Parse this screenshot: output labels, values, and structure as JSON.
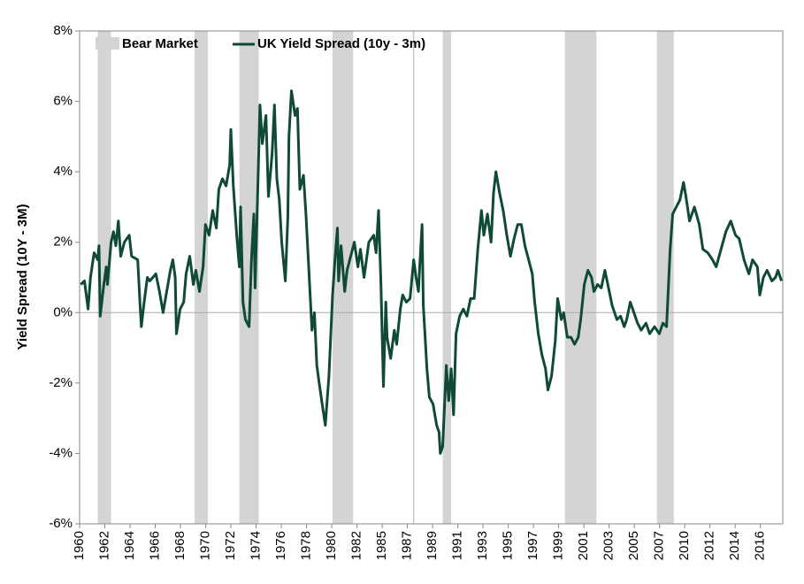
{
  "chart_data": {
    "type": "line",
    "ylabel": "Yield Spread (10Y - 3M)",
    "xlim": [
      1960,
      2018.1
    ],
    "ylim": [
      -6,
      8
    ],
    "yticks": [
      {
        "value": -6,
        "label": "-6%"
      },
      {
        "value": -4,
        "label": "-4%"
      },
      {
        "value": -2,
        "label": "-2%"
      },
      {
        "value": 0,
        "label": "0%"
      },
      {
        "value": 2,
        "label": "2%"
      },
      {
        "value": 4,
        "label": "4%"
      },
      {
        "value": 6,
        "label": "6%"
      },
      {
        "value": 8,
        "label": "8%"
      }
    ],
    "xticks": [
      1960,
      {
        "value": 1962.08,
        "label": "1962"
      },
      {
        "value": 1964.17,
        "label": "1964"
      },
      {
        "value": 1966.25,
        "label": "1966"
      },
      {
        "value": 1968.33,
        "label": "1968"
      },
      {
        "value": 1970.42,
        "label": "1970"
      },
      {
        "value": 1972.5,
        "label": "1972"
      },
      {
        "value": 1974.58,
        "label": "1974"
      },
      {
        "value": 1976.67,
        "label": "1976"
      },
      {
        "value": 1978.75,
        "label": "1978"
      },
      {
        "value": 1980.83,
        "label": "1980"
      },
      {
        "value": 1982.92,
        "label": "1982"
      },
      1985,
      {
        "value": 1987.08,
        "label": "1987"
      },
      {
        "value": 1989.17,
        "label": "1989"
      },
      {
        "value": 1991.25,
        "label": "1991"
      },
      {
        "value": 1993.33,
        "label": "1993"
      },
      {
        "value": 1995.42,
        "label": "1995"
      },
      {
        "value": 1997.5,
        "label": "1997"
      },
      {
        "value": 1999.58,
        "label": "1999"
      },
      {
        "value": 2001.67,
        "label": "2001"
      },
      {
        "value": 2003.75,
        "label": "2003"
      },
      {
        "value": 2005.83,
        "label": "2005"
      },
      {
        "value": 2007.92,
        "label": "2007"
      },
      2010,
      {
        "value": 2012.08,
        "label": "2012"
      },
      {
        "value": 2014.17,
        "label": "2014"
      },
      {
        "value": 2016.25,
        "label": "2016"
      }
    ],
    "bands": {
      "name": "Bear Market",
      "color": "#d4d4d4",
      "ranges": [
        [
          1961.5,
          1962.6
        ],
        [
          1969.5,
          1970.6
        ],
        [
          1973.2,
          1974.8
        ],
        [
          1980.9,
          1982.6
        ],
        [
          1990.0,
          1990.7
        ],
        [
          2000.1,
          2002.7
        ],
        [
          2007.7,
          2009.1
        ]
      ]
    },
    "reference_lines": [
      1987.6
    ],
    "x": [
      1960.1,
      1960.4,
      1960.7,
      1960.9,
      1961.2,
      1961.5,
      1961.6,
      1961.7,
      1962.0,
      1962.2,
      1962.3,
      1962.6,
      1962.8,
      1963.0,
      1963.2,
      1963.4,
      1963.7,
      1964.1,
      1964.3,
      1964.8,
      1965.0,
      1965.1,
      1965.3,
      1965.6,
      1965.8,
      1966.3,
      1966.6,
      1966.9,
      1967.2,
      1967.5,
      1967.7,
      1967.9,
      1968.0,
      1968.3,
      1968.6,
      1968.8,
      1969.1,
      1969.4,
      1969.6,
      1969.9,
      1970.2,
      1970.4,
      1970.7,
      1971.0,
      1971.3,
      1971.5,
      1971.8,
      1972.1,
      1972.4,
      1972.5,
      1972.7,
      1973.0,
      1973.2,
      1973.3,
      1973.5,
      1973.7,
      1974.0,
      1974.2,
      1974.4,
      1974.5,
      1974.8,
      1974.9,
      1975.1,
      1975.4,
      1975.6,
      1975.9,
      1976.1,
      1976.3,
      1976.5,
      1976.7,
      1977.0,
      1977.2,
      1977.3,
      1977.5,
      1977.8,
      1978.0,
      1978.2,
      1978.5,
      1978.7,
      1978.9,
      1979.2,
      1979.4,
      1979.6,
      1979.8,
      1980.0,
      1980.3,
      1980.6,
      1980.9,
      1981.1,
      1981.3,
      1981.4,
      1981.6,
      1981.9,
      1982.1,
      1982.4,
      1982.7,
      1983.0,
      1983.2,
      1983.5,
      1983.9,
      1984.3,
      1984.5,
      1984.7,
      1984.9,
      1985.1,
      1985.3,
      1985.4,
      1985.7,
      1986.0,
      1986.2,
      1986.5,
      1986.7,
      1987.0,
      1987.3,
      1987.6,
      1987.8,
      1988.0,
      1988.1,
      1988.3,
      1988.4,
      1988.7,
      1988.9,
      1989.2,
      1989.5,
      1989.7,
      1989.8,
      1990.0,
      1990.3,
      1990.5,
      1990.7,
      1990.9,
      1991.1,
      1991.4,
      1991.7,
      1992.0,
      1992.3,
      1992.6,
      1992.9,
      1993.2,
      1993.4,
      1993.7,
      1994.0,
      1994.2,
      1994.4,
      1994.7,
      1995.0,
      1995.3,
      1995.6,
      1995.9,
      1996.2,
      1996.5,
      1996.8,
      1997.1,
      1997.4,
      1997.6,
      1997.9,
      1998.2,
      1998.5,
      1998.7,
      1999.0,
      1999.3,
      1999.5,
      1999.8,
      2000.0,
      2000.3,
      2000.6,
      2000.9,
      2001.2,
      2001.4,
      2001.7,
      2002.0,
      2002.3,
      2002.5,
      2002.8,
      2003.1,
      2003.4,
      2003.7,
      2004.0,
      2004.4,
      2004.7,
      2005.0,
      2005.2,
      2005.5,
      2005.8,
      2006.1,
      2006.4,
      2006.8,
      2007.1,
      2007.5,
      2007.9,
      2008.2,
      2008.5,
      2008.8,
      2009.0,
      2009.3,
      2009.6,
      2009.9,
      2010.1,
      2010.4,
      2010.8,
      2011.2,
      2011.5,
      2011.9,
      2012.3,
      2012.6,
      2013.0,
      2013.4,
      2013.8,
      2014.2,
      2014.5,
      2014.9,
      2015.3,
      2015.6,
      2016.0,
      2016.2,
      2016.5,
      2016.8,
      2017.2,
      2017.5,
      2017.7,
      2018.0
    ],
    "series": [
      {
        "name": "UK Yield Spread (10y - 3m)",
        "color": "#0f4a36",
        "values": [
          0.8,
          0.9,
          0.1,
          1.0,
          1.7,
          1.5,
          1.9,
          -0.1,
          0.8,
          1.3,
          0.8,
          2.0,
          2.3,
          1.9,
          2.6,
          1.6,
          2.0,
          2.2,
          1.6,
          1.5,
          0.2,
          -0.4,
          0.2,
          1.0,
          0.9,
          1.1,
          0.6,
          0.0,
          0.6,
          1.2,
          1.5,
          1.0,
          -0.6,
          0.1,
          0.3,
          1.1,
          1.6,
          0.8,
          1.2,
          0.6,
          1.3,
          2.5,
          2.2,
          2.9,
          2.4,
          3.5,
          3.8,
          3.6,
          4.2,
          5.2,
          3.6,
          2.1,
          1.3,
          3.0,
          0.3,
          -0.2,
          -0.4,
          1.5,
          2.8,
          0.7,
          4.5,
          5.9,
          4.8,
          5.6,
          3.3,
          4.5,
          5.9,
          3.8,
          3.2,
          2.0,
          0.9,
          2.7,
          5.0,
          6.3,
          5.6,
          5.8,
          3.5,
          3.9,
          2.8,
          1.5,
          -0.5,
          0.0,
          -1.5,
          -2.0,
          -2.5,
          -3.2,
          -1.8,
          0.5,
          1.5,
          2.4,
          0.9,
          1.9,
          0.6,
          1.2,
          1.6,
          2.0,
          1.3,
          1.8,
          1.0,
          2.0,
          2.2,
          1.7,
          2.9,
          0.8,
          -2.1,
          0.3,
          -0.7,
          -1.3,
          -0.5,
          -0.9,
          0.1,
          0.5,
          0.3,
          0.4,
          1.5,
          1.0,
          0.6,
          1.3,
          2.5,
          0.2,
          -1.6,
          -2.4,
          -2.6,
          -3.2,
          -3.4,
          -4.0,
          -3.8,
          -1.5,
          -2.5,
          -1.6,
          -2.9,
          -0.6,
          -0.1,
          0.1,
          -0.1,
          0.4,
          0.4,
          1.8,
          2.9,
          2.2,
          2.8,
          2.0,
          3.4,
          4.0,
          3.4,
          2.9,
          2.2,
          1.6,
          2.1,
          2.5,
          2.5,
          1.9,
          1.5,
          1.1,
          0.3,
          -0.6,
          -1.2,
          -1.6,
          -2.2,
          -1.8,
          -0.8,
          0.4,
          -0.2,
          0.0,
          -0.7,
          -0.7,
          -0.9,
          -0.7,
          -0.2,
          0.8,
          1.2,
          1.0,
          0.6,
          0.8,
          0.7,
          1.2,
          0.7,
          0.2,
          -0.2,
          -0.1,
          -0.4,
          -0.2,
          0.3,
          0.0,
          -0.3,
          -0.5,
          -0.3,
          -0.6,
          -0.4,
          -0.6,
          -0.3,
          -0.4,
          1.8,
          2.8,
          3.0,
          3.2,
          3.7,
          3.3,
          2.6,
          3.0,
          2.5,
          1.8,
          1.7,
          1.5,
          1.3,
          1.8,
          2.3,
          2.6,
          2.2,
          2.1,
          1.5,
          1.1,
          1.5,
          1.3,
          0.5,
          1.0,
          1.2,
          0.9,
          1.0,
          1.2,
          0.9
        ]
      }
    ]
  }
}
